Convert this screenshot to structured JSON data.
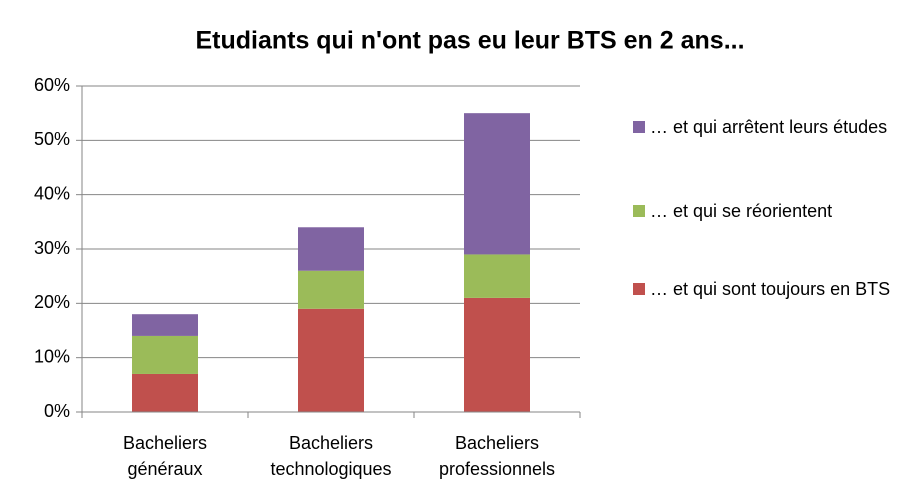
{
  "chart_data": {
    "type": "stacked_bar",
    "title": "Etudiants qui n'ont pas eu leur BTS en 2 ans...",
    "categories": [
      "Bacheliers généraux",
      "Bacheliers technologiques",
      "Bacheliers professionnels"
    ],
    "series": [
      {
        "name": "… et qui sont toujours en BTS",
        "color": "#c0504d",
        "values": [
          7,
          19,
          21
        ]
      },
      {
        "name": "… et qui se réorientent",
        "color": "#9bbb59",
        "values": [
          7,
          7,
          8
        ]
      },
      {
        "name": "… et qui arrêtent leurs études",
        "color": "#8064a2",
        "values": [
          4,
          8,
          26
        ]
      }
    ],
    "ylim": [
      0,
      60
    ],
    "yticks": [
      {
        "value": 0,
        "label": "0%"
      },
      {
        "value": 10,
        "label": "10%"
      },
      {
        "value": 20,
        "label": "20%"
      },
      {
        "value": 30,
        "label": "30%"
      },
      {
        "value": 40,
        "label": "40%"
      },
      {
        "value": 50,
        "label": "50%"
      },
      {
        "value": 60,
        "label": "60%"
      }
    ],
    "grid": true,
    "legend": "right"
  }
}
